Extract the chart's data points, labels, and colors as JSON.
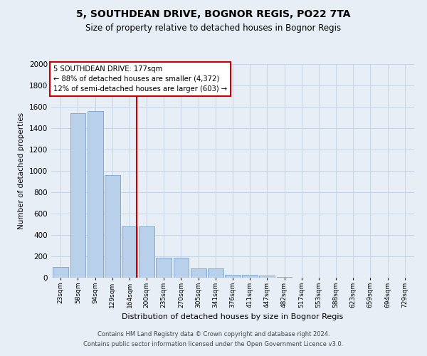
{
  "title": "5, SOUTHDEAN DRIVE, BOGNOR REGIS, PO22 7TA",
  "subtitle": "Size of property relative to detached houses in Bognor Regis",
  "xlabel": "Distribution of detached houses by size in Bognor Regis",
  "ylabel": "Number of detached properties",
  "categories": [
    "23sqm",
    "58sqm",
    "94sqm",
    "129sqm",
    "164sqm",
    "200sqm",
    "235sqm",
    "270sqm",
    "305sqm",
    "341sqm",
    "376sqm",
    "411sqm",
    "447sqm",
    "482sqm",
    "517sqm",
    "553sqm",
    "588sqm",
    "623sqm",
    "659sqm",
    "694sqm",
    "729sqm"
  ],
  "values": [
    100,
    1540,
    1560,
    960,
    480,
    480,
    190,
    190,
    85,
    85,
    30,
    25,
    20,
    5,
    0,
    0,
    0,
    0,
    0,
    0,
    0
  ],
  "bar_color": "#b8d0ea",
  "bar_edge_color": "#6699cc",
  "grid_color": "#c8d4e4",
  "background_color": "#e8eef6",
  "annotation_box_color": "#ffffff",
  "annotation_border_color": "#cc0000",
  "vline_color": "#cc0000",
  "vline_x_index": 4,
  "annotation_title": "5 SOUTHDEAN DRIVE: 177sqm",
  "annotation_line1": "← 88% of detached houses are smaller (4,372)",
  "annotation_line2": "12% of semi-detached houses are larger (603) →",
  "footer_line1": "Contains HM Land Registry data © Crown copyright and database right 2024.",
  "footer_line2": "Contains public sector information licensed under the Open Government Licence v3.0.",
  "ylim": [
    0,
    2000
  ],
  "title_fontsize": 10,
  "subtitle_fontsize": 8.5,
  "annotation_fontsize": 7.2,
  "footer_fontsize": 6.0,
  "ylabel_fontsize": 7.5,
  "xlabel_fontsize": 8.0
}
